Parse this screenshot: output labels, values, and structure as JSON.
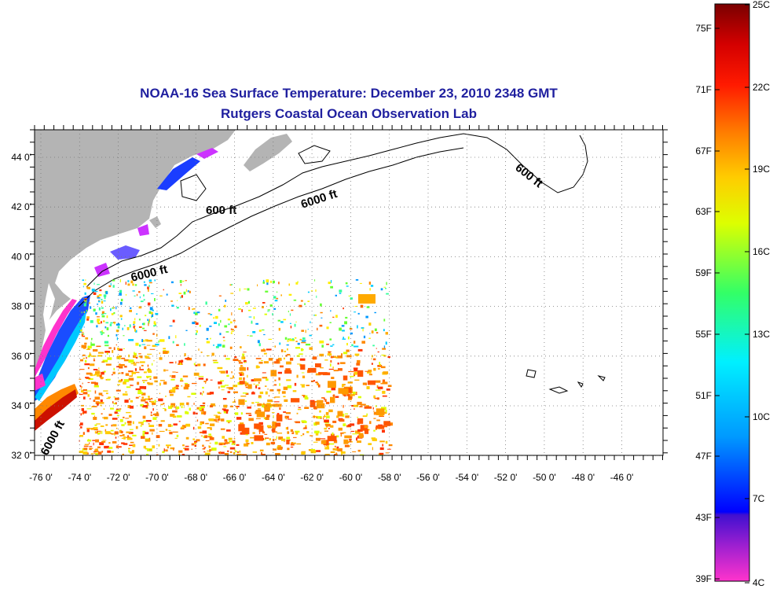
{
  "title": "NOAA-16 Sea Surface Temperature:  December 23, 2010 2348 GMT",
  "subtitle": "Rutgers Coastal Ocean Observation Lab",
  "lon_labels": [
    "-76 0'",
    "-74 0'",
    "-72 0'",
    "-70 0'",
    "-68 0'",
    "-66 0'",
    "-64 0'",
    "-62 0'",
    "-60 0'",
    "-58 0'",
    "-56 0'",
    "-54 0'",
    "-52 0'",
    "-50 0'",
    "-48 0'",
    "-46 0'"
  ],
  "lat_labels": [
    "44 0'",
    "42 0'",
    "40 0'",
    "38 0'",
    "36 0'",
    "34 0'",
    "32 0'"
  ],
  "contour_labels": [
    "600 ft",
    "6000 ft",
    "6000 ft",
    "600 ft",
    "6000 ft"
  ],
  "colorbar": {
    "fahrenheit_labels": [
      "75F",
      "71F",
      "67F",
      "63F",
      "59F",
      "55F",
      "51F",
      "47F",
      "43F",
      "39F"
    ],
    "celsius_labels": [
      "25C",
      "22C",
      "19C",
      "16C",
      "13C",
      "10C",
      "7C",
      "4C"
    ],
    "colors": [
      "#ff33cc",
      "#7a1fcf",
      "#0000ff",
      "#0099ff",
      "#00e5ff",
      "#33ff66",
      "#ccff00",
      "#ffee00",
      "#ff8800",
      "#ff1100",
      "#cc0000",
      "#7a0000"
    ]
  },
  "colors": {
    "land": "#b4b4b4",
    "title": "#1f1f9f"
  }
}
